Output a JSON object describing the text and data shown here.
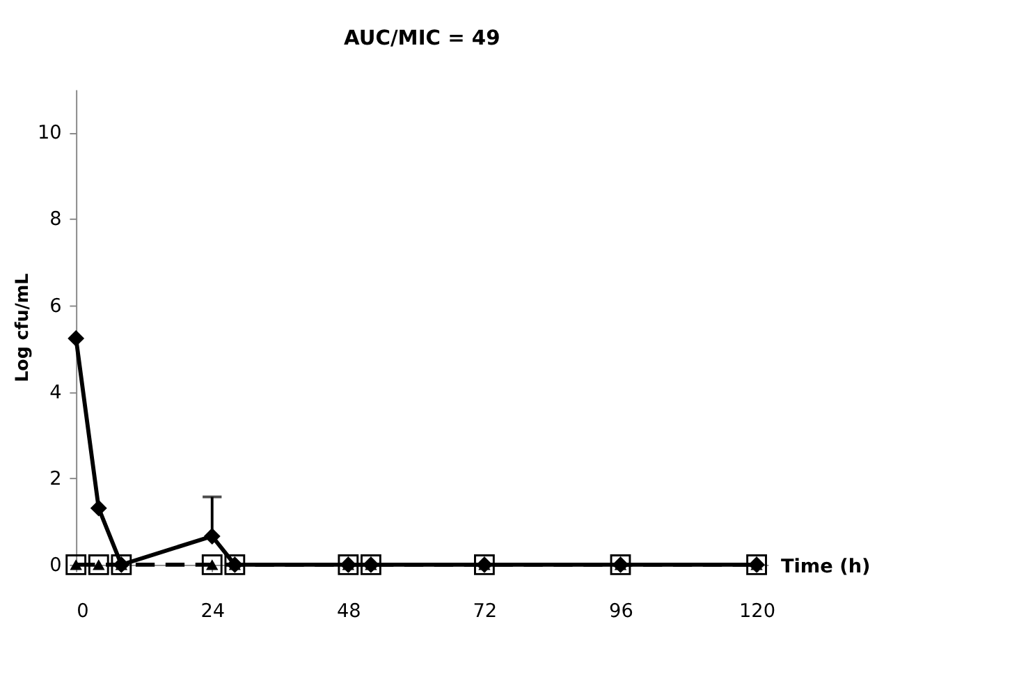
{
  "chart_data": {
    "type": "line",
    "title": "AUC/MIC = 49",
    "xlabel": "Time (h)",
    "ylabel": "Log cfu/mL",
    "x": [
      0,
      4,
      8,
      24,
      28,
      48,
      52,
      72,
      96,
      120
    ],
    "series": [
      {
        "color": "#000000",
        "marker": "square",
        "line_style": "dashed",
        "values": [
          0,
          0,
          0,
          0,
          0,
          0,
          0,
          0,
          0,
          0
        ]
      },
      {
        "type": "scatter",
        "color": "#000000",
        "marker": "triangle",
        "values": [
          0,
          0,
          0,
          0,
          0,
          0,
          0,
          0,
          0,
          0
        ]
      },
      {
        "color": "#000000",
        "marker": "diamond",
        "line_style": "solid",
        "values": [
          5.24,
          1.31,
          0,
          0.66,
          0,
          0,
          0,
          0,
          0,
          0
        ],
        "errors": [
          null,
          null,
          null,
          [
            0.66,
            1.57
          ],
          null,
          null,
          null,
          null,
          null,
          null
        ]
      }
    ],
    "xlim": [
      0,
      122
    ],
    "ylim": [
      0,
      11
    ],
    "xticks": [
      0,
      24,
      48,
      72,
      96,
      120
    ],
    "yticks": [
      0,
      2,
      4,
      6,
      8,
      10
    ],
    "grid": false
  }
}
